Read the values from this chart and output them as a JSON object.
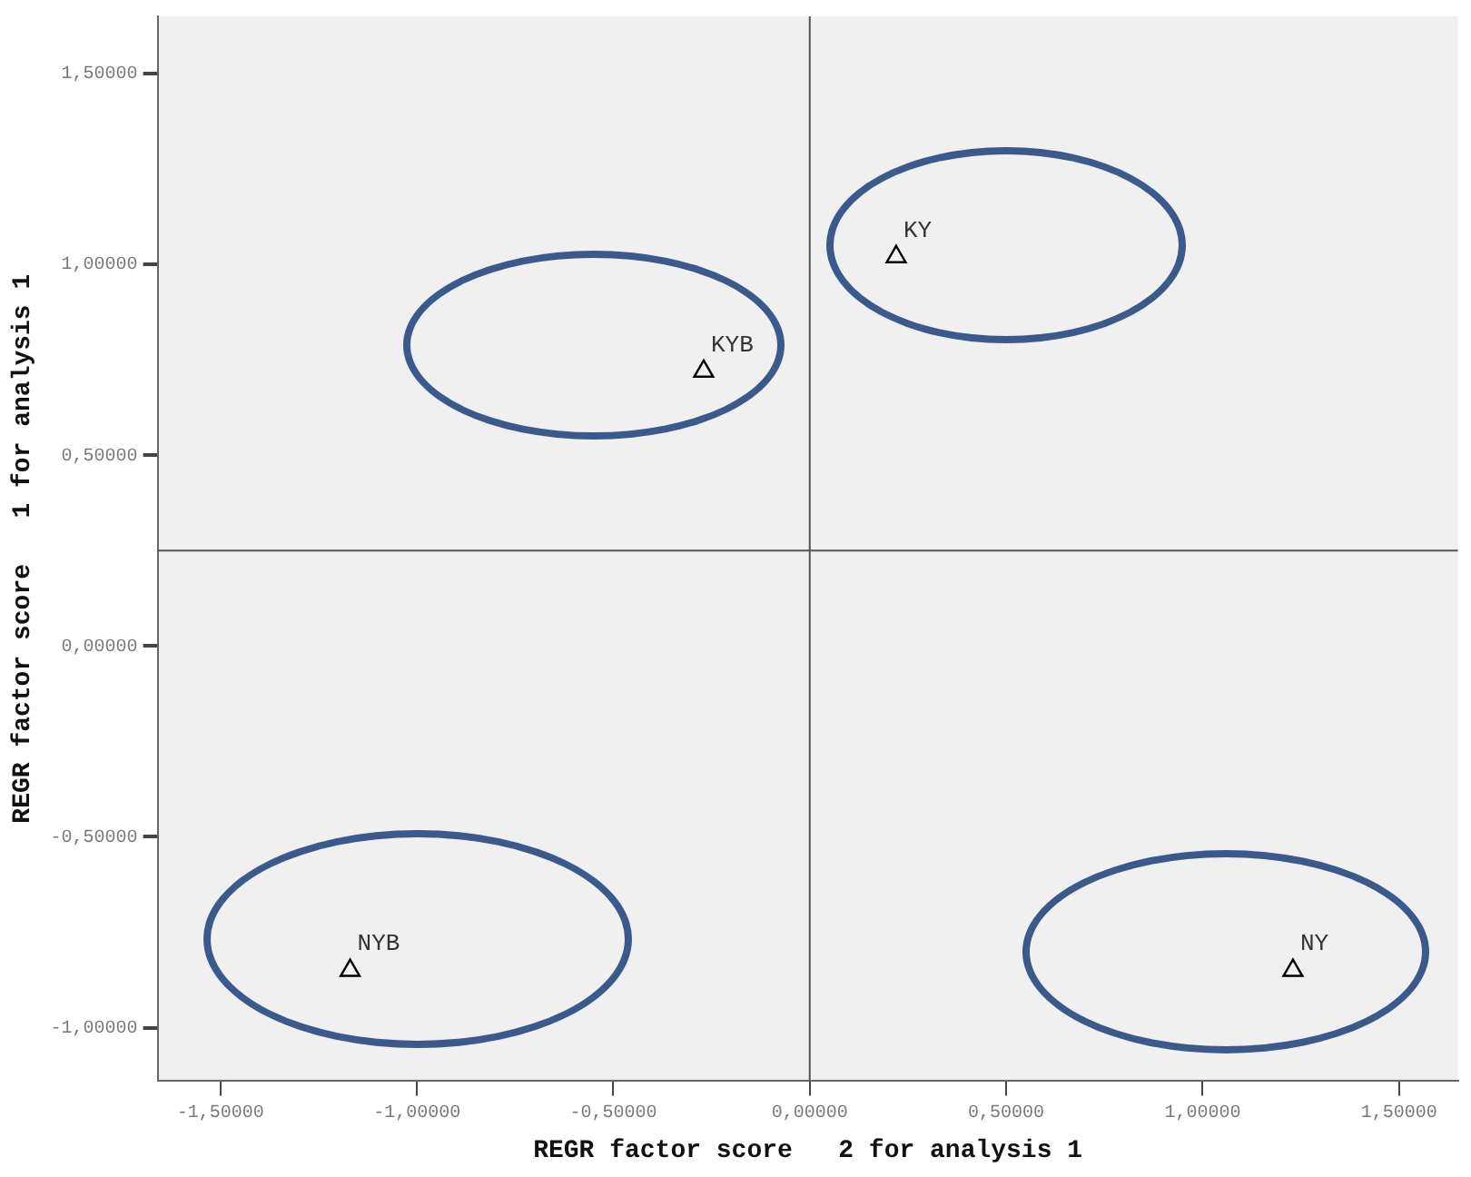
{
  "chart_data": {
    "type": "scatter",
    "xlabel": "REGR factor score   2 for analysis 1",
    "ylabel": "REGR factor score   1 for analysis 1",
    "x": [
      0.22,
      -0.27,
      -1.17,
      1.23
    ],
    "series": [
      {
        "color": "#000000",
        "values": [
          1.02,
          0.72,
          -0.85,
          -0.85
        ]
      }
    ],
    "marker": "triangle",
    "grid": false,
    "legend": false,
    "xlim": [
      -1.66,
      1.65
    ],
    "ylim": [
      -1.14,
      1.65
    ],
    "xticks": [
      {
        "value": -1.5,
        "label": "-1,50000"
      },
      {
        "value": -1,
        "label": "-1,00000"
      },
      {
        "value": -0.5,
        "label": "-0,50000"
      },
      {
        "value": 0,
        "label": "0,00000"
      },
      {
        "value": 0.5,
        "label": "0,50000"
      },
      {
        "value": 1,
        "label": "1,00000"
      },
      {
        "value": 1.5,
        "label": "1,50000"
      }
    ],
    "yticks": [
      {
        "value": -1,
        "label": "-1,00000"
      },
      {
        "value": -0.5,
        "label": "-0,50000"
      },
      {
        "value": 0,
        "label": "0,00000"
      },
      {
        "value": 0.5,
        "label": "0,50000"
      },
      {
        "value": 1,
        "label": "1,00000"
      },
      {
        "value": 1.5,
        "label": "1,50000"
      }
    ],
    "ref_lines": [
      {
        "axis": "x",
        "value": 0,
        "color": "#555555"
      },
      {
        "axis": "y",
        "value": 0.25,
        "color": "#555555"
      }
    ],
    "annotations": [
      {
        "text": "KY",
        "x": 0.22,
        "y": 1.02
      },
      {
        "text": "KYB",
        "x": -0.27,
        "y": 0.72
      },
      {
        "text": "NYB",
        "x": -1.17,
        "y": -0.85
      },
      {
        "text": "NY",
        "x": 1.23,
        "y": -0.85
      }
    ]
  }
}
